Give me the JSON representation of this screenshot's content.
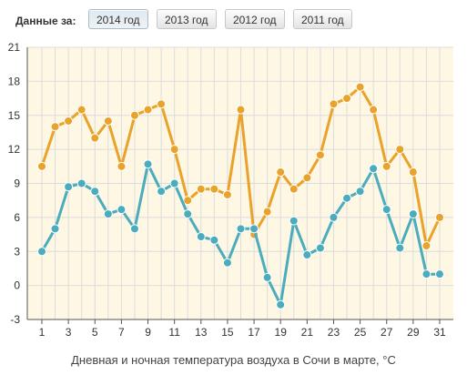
{
  "toolbar": {
    "label": "Данные за:",
    "buttons": [
      "2014 год",
      "2013 год",
      "2012 год",
      "2011 год"
    ],
    "active_index": 0
  },
  "colors": {
    "plot_background": "#fdf7e4",
    "grid": "#dcdcdc",
    "day_series": "#e9a22a",
    "night_series": "#4aacbc",
    "axis": "#555555"
  },
  "chart_data": {
    "type": "line",
    "xlabel": "Дневная и ночная температура воздуха в Сочи в марте, °C",
    "ylabel": "",
    "x": [
      1,
      2,
      3,
      4,
      5,
      6,
      7,
      8,
      9,
      10,
      11,
      12,
      13,
      14,
      15,
      16,
      17,
      18,
      19,
      20,
      21,
      22,
      23,
      24,
      25,
      26,
      27,
      28,
      29,
      30,
      31
    ],
    "x_tick_labels": [
      "1",
      "3",
      "5",
      "7",
      "9",
      "11",
      "13",
      "15",
      "17",
      "19",
      "21",
      "23",
      "25",
      "27",
      "29",
      "31"
    ],
    "ylim": [
      -3,
      21
    ],
    "y_ticks": [
      -3,
      0,
      3,
      6,
      9,
      12,
      15,
      18,
      21
    ],
    "grid": true,
    "series": [
      {
        "color": "#e9a22a",
        "values": [
          10.5,
          14,
          14.5,
          15.5,
          13,
          14.5,
          10.5,
          15,
          15.5,
          16,
          12,
          7.5,
          8.5,
          8.5,
          8,
          15.5,
          4.5,
          6.5,
          10,
          8.5,
          9.5,
          11.5,
          16,
          16.5,
          17.5,
          15.5,
          10.5,
          12,
          10,
          3.5,
          6
        ]
      },
      {
        "color": "#4aacbc",
        "values": [
          3,
          5,
          8.7,
          9,
          8.3,
          6.3,
          6.7,
          5,
          10.7,
          8.3,
          9,
          6.3,
          4.3,
          4,
          2,
          5,
          5,
          0.7,
          -1.7,
          5.7,
          2.7,
          3.3,
          6,
          7.7,
          8.3,
          10.3,
          6.7,
          3.3,
          6.3,
          1,
          1
        ]
      }
    ]
  }
}
